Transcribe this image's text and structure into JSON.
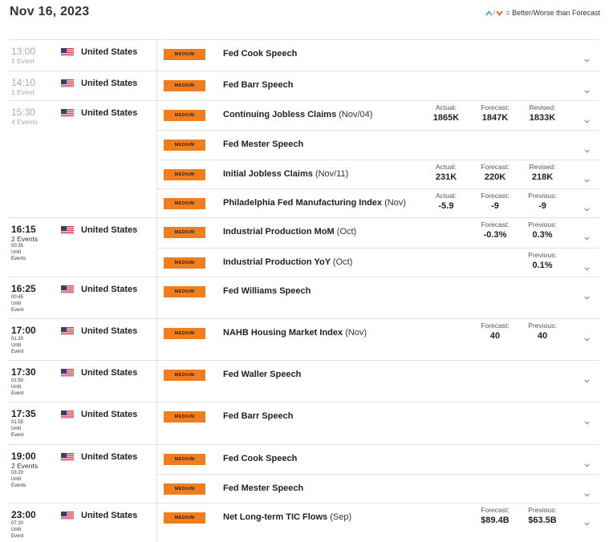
{
  "header": {
    "date": "Nov 16, 2023",
    "legend_text": "= Better/Worse than Forecast"
  },
  "colors": {
    "badge": "#f07d1e",
    "better": "#3a9bd9",
    "worse": "#e0521e"
  },
  "groups": [
    {
      "time": "13:00",
      "events": "1 Event",
      "past": true,
      "country": "United States",
      "rows": [
        {
          "impact": "MEDIUM",
          "title": "Fed Cook Speech",
          "period": ""
        }
      ]
    },
    {
      "time": "14:10",
      "events": "1 Event",
      "past": true,
      "country": "United States",
      "rows": [
        {
          "impact": "MEDIUM",
          "title": "Fed Barr Speech",
          "period": ""
        }
      ]
    },
    {
      "time": "15:30",
      "events": "4 Events",
      "past": true,
      "country": "United States",
      "rows": [
        {
          "impact": "MEDIUM",
          "title": "Continuing Jobless Claims",
          "period": "(Nov/04)",
          "vals": [
            {
              "label": "Actual:",
              "value": "1865K"
            },
            {
              "label": "Forecast:",
              "value": "1847K"
            },
            {
              "label": "Revised:",
              "value": "1833K"
            }
          ]
        },
        {
          "impact": "MEDIUM",
          "title": "Fed Mester Speech",
          "period": ""
        },
        {
          "impact": "MEDIUM",
          "title": "Initial Jobless Claims",
          "period": "(Nov/11)",
          "vals": [
            {
              "label": "Actual:",
              "value": "231K"
            },
            {
              "label": "Forecast:",
              "value": "220K"
            },
            {
              "label": "Revised:",
              "value": "218K"
            }
          ]
        },
        {
          "impact": "MEDIUM",
          "title": "Philadelphia Fed Manufacturing Index",
          "period": "(Nov)",
          "vals": [
            {
              "label": "Actual:",
              "value": "-5.9"
            },
            {
              "label": "Forecast:",
              "value": "-9"
            },
            {
              "label": "Previous:",
              "value": "-9"
            }
          ]
        }
      ]
    },
    {
      "time": "16:15",
      "events": "2 Events",
      "countdown": "00:35",
      "until1": "Until",
      "until2": "Events",
      "past": false,
      "country": "United States",
      "rows": [
        {
          "impact": "MEDIUM",
          "title": "Industrial Production MoM",
          "period": "(Oct)",
          "vals": [
            null,
            {
              "label": "Forecast:",
              "value": "-0.3%"
            },
            {
              "label": "Previous:",
              "value": "0.3%"
            }
          ]
        },
        {
          "impact": "MEDIUM",
          "title": "Industrial Production YoY",
          "period": "(Oct)",
          "vals": [
            null,
            null,
            {
              "label": "Previous:",
              "value": "0.1%"
            }
          ]
        }
      ]
    },
    {
      "time": "16:25",
      "events": "",
      "countdown": "00:45",
      "until1": "Until",
      "until2": "Event",
      "past": false,
      "country": "United States",
      "rows": [
        {
          "impact": "MEDIUM",
          "title": "Fed Williams Speech",
          "period": ""
        }
      ]
    },
    {
      "time": "17:00",
      "events": "",
      "countdown": "01:20",
      "until1": "Until",
      "until2": "Event",
      "past": false,
      "country": "United States",
      "rows": [
        {
          "impact": "MEDIUM",
          "title": "NAHB Housing Market Index",
          "period": "(Nov)",
          "vals": [
            null,
            {
              "label": "Forecast:",
              "value": "40"
            },
            {
              "label": "Previous:",
              "value": "40"
            }
          ]
        }
      ]
    },
    {
      "time": "17:30",
      "events": "",
      "countdown": "01:50",
      "until1": "Until",
      "until2": "Event",
      "past": false,
      "country": "United States",
      "rows": [
        {
          "impact": "MEDIUM",
          "title": "Fed Waller Speech",
          "period": ""
        }
      ]
    },
    {
      "time": "17:35",
      "events": "",
      "countdown": "01:55",
      "until1": "Until",
      "until2": "Event",
      "past": false,
      "country": "United States",
      "rows": [
        {
          "impact": "MEDIUM",
          "title": "Fed Barr Speech",
          "period": ""
        }
      ]
    },
    {
      "time": "19:00",
      "events": "2 Events",
      "countdown": "03:20",
      "until1": "Until",
      "until2": "Events",
      "past": false,
      "country": "United States",
      "rows": [
        {
          "impact": "MEDIUM",
          "title": "Fed Cook Speech",
          "period": ""
        },
        {
          "impact": "MEDIUM",
          "title": "Fed Mester Speech",
          "period": ""
        }
      ]
    },
    {
      "time": "23:00",
      "events": "",
      "countdown": "07:20",
      "until1": "Until",
      "until2": "Event",
      "past": false,
      "country": "United States",
      "rows": [
        {
          "impact": "MEDIUM",
          "title": "Net Long-term TIC Flows",
          "period": "(Sep)",
          "vals": [
            null,
            {
              "label": "Forecast:",
              "value": "$89.4B"
            },
            {
              "label": "Previous:",
              "value": "$63.5B"
            }
          ]
        }
      ]
    }
  ]
}
